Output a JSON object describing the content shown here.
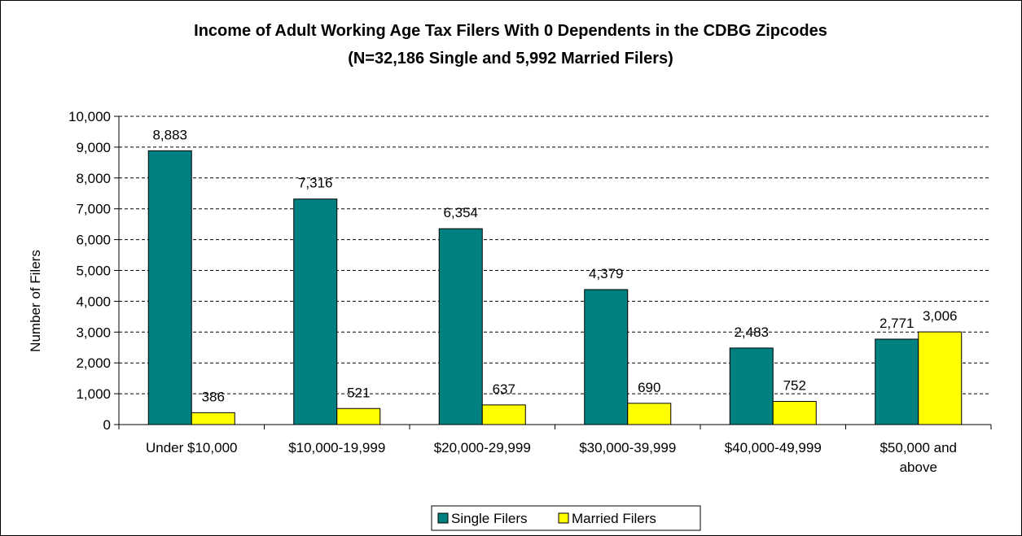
{
  "chart_data": {
    "type": "bar",
    "title": "Income of Adult Working Age Tax Filers With 0 Dependents in the CDBG Zipcodes",
    "subtitle": "(N=32,186 Single and 5,992 Married Filers)",
    "xlabel": "",
    "ylabel": "Number of Filers",
    "ylim": [
      0,
      10000
    ],
    "ytick_step": 1000,
    "yticks": [
      "0",
      "1,000",
      "2,000",
      "3,000",
      "4,000",
      "5,000",
      "6,000",
      "7,000",
      "8,000",
      "9,000",
      "10,000"
    ],
    "grid": true,
    "legend_position": "bottom",
    "categories": [
      [
        "Under $10,000"
      ],
      [
        "$10,000-19,999"
      ],
      [
        "$20,000-29,999"
      ],
      [
        "$30,000-39,999"
      ],
      [
        "$40,000-49,999"
      ],
      [
        "$50,000 and",
        "above"
      ]
    ],
    "series": [
      {
        "name": "Single Filers",
        "color": "#008080",
        "values": [
          8883,
          7316,
          6354,
          4379,
          2483,
          2771
        ],
        "labels": [
          "8,883",
          "7,316",
          "6,354",
          "4,379",
          "2,483",
          "2,771"
        ]
      },
      {
        "name": "Married Filers",
        "color": "#FFFF00",
        "values": [
          386,
          521,
          637,
          690,
          752,
          3006
        ],
        "labels": [
          "386",
          "521",
          "637",
          "690",
          "752",
          "3,006"
        ]
      }
    ]
  }
}
